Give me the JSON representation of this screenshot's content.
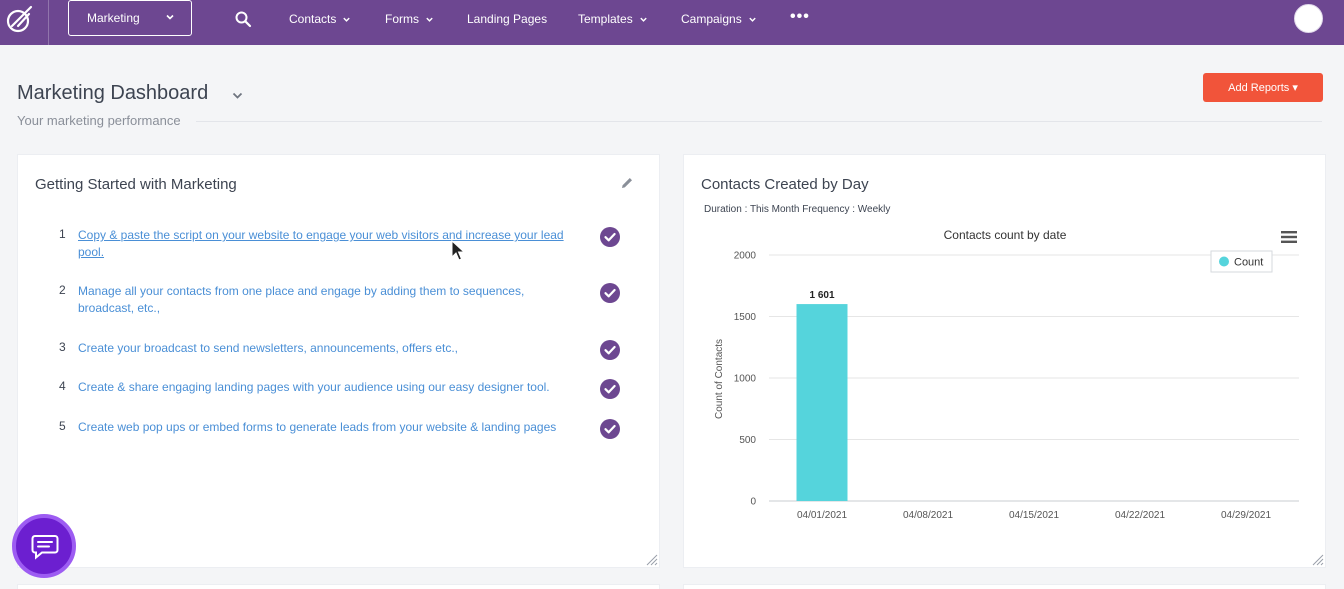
{
  "nav": {
    "selector_label": "Marketing",
    "items": [
      {
        "label": "Contacts",
        "has_caret": true
      },
      {
        "label": "Forms",
        "has_caret": true
      },
      {
        "label": "Landing Pages",
        "has_caret": false
      },
      {
        "label": "Templates",
        "has_caret": true
      },
      {
        "label": "Campaigns",
        "has_caret": true
      }
    ],
    "more_label": "•••",
    "accent_color": "#6d4791"
  },
  "header": {
    "title": "Marketing Dashboard",
    "subtitle": "Your marketing performance",
    "add_reports_label": "Add Reports ▾",
    "add_reports_color": "#f1543a"
  },
  "getting_started": {
    "title": "Getting Started with Marketing",
    "steps": [
      {
        "num": "1",
        "text": "Copy & paste the script on your website to engage your web visitors and increase your lead pool.",
        "done": true
      },
      {
        "num": "2",
        "text": "Manage all your contacts from one place and engage by adding them to sequences, broadcast, etc.,",
        "done": true
      },
      {
        "num": "3",
        "text": "Create your broadcast to send newsletters, announcements, offers etc.,",
        "done": true
      },
      {
        "num": "4",
        "text": "Create & share engaging landing pages with your audience using our easy designer tool.",
        "done": true
      },
      {
        "num": "5",
        "text": "Create web pop ups or embed forms to generate leads from your website & landing pages",
        "done": true
      }
    ],
    "check_color": "#6d4791"
  },
  "contacts_card": {
    "title": "Contacts Created by Day",
    "subtitle": "Duration : This Month Frequency : Weekly"
  },
  "chart_data": {
    "type": "bar",
    "title": "Contacts count by date",
    "xlabel": "",
    "ylabel": "Count of Contacts",
    "categories": [
      "04/01/2021",
      "04/08/2021",
      "04/15/2021",
      "04/22/2021",
      "04/29/2021"
    ],
    "series": [
      {
        "name": "Count",
        "values": [
          1601,
          0,
          0,
          0,
          0
        ],
        "color": "#55d4dc"
      }
    ],
    "data_labels": [
      "1 601",
      "",
      "",
      "",
      ""
    ],
    "ylim": [
      0,
      2000
    ],
    "yticks": [
      0,
      500,
      1000,
      1500,
      2000
    ],
    "grid": true,
    "legend": "top-right"
  }
}
